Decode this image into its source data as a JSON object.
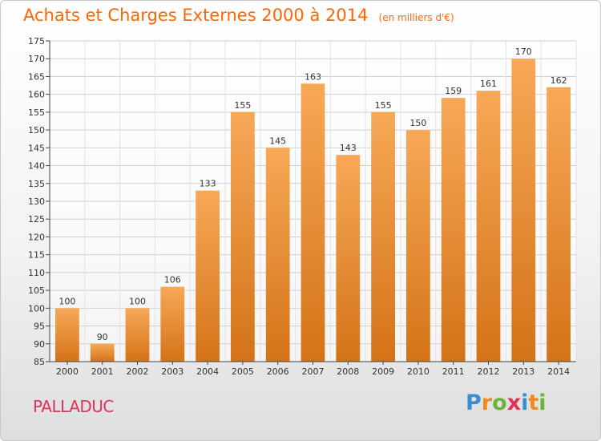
{
  "title": "Achats et Charges Externes 2000 à 2014",
  "subtitle": "(en milliers d'€)",
  "commune": "PALLADUC",
  "logo": {
    "letters": [
      "P",
      "r",
      "o",
      "x",
      "i",
      "t",
      "i"
    ],
    "colors": [
      "#3a8fd0",
      "#f08a1c",
      "#6cb33f",
      "#e0315a",
      "#3a8fd0",
      "#f08a1c",
      "#6cb33f"
    ]
  },
  "colors": {
    "title": "#ff6600",
    "bar_light": "#f7a857",
    "bar_dark": "#d47318",
    "commune": "#e0315a"
  },
  "chart_data": {
    "type": "bar",
    "categories": [
      "2000",
      "2001",
      "2002",
      "2003",
      "2004",
      "2005",
      "2006",
      "2007",
      "2008",
      "2009",
      "2010",
      "2011",
      "2012",
      "2013",
      "2014"
    ],
    "values": [
      100,
      90,
      100,
      106,
      133,
      155,
      145,
      163,
      143,
      155,
      150,
      159,
      161,
      170,
      162
    ],
    "ylim": [
      85,
      175
    ],
    "yticks": [
      85,
      90,
      95,
      100,
      105,
      110,
      115,
      120,
      125,
      130,
      135,
      140,
      145,
      150,
      155,
      160,
      165,
      170,
      175
    ],
    "grid": true
  }
}
